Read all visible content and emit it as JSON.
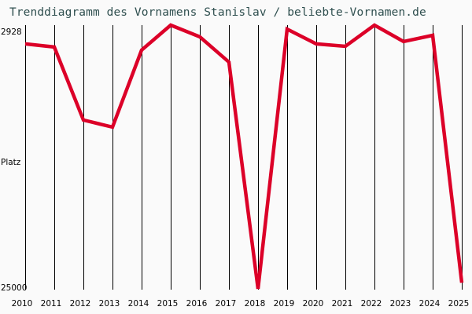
{
  "title": "Trenddiagramm des Vornamens Stanislav / beliebte-Vornamen.de",
  "colors": {
    "background": "#fafafa",
    "title": "#2f4f4f",
    "gridline": "#000000",
    "line": "#dc0028"
  },
  "y_axis": {
    "top_label": "2928",
    "mid_label": "Platz",
    "bottom_label": "25000"
  },
  "chart_data": {
    "type": "line",
    "title": "Trenddiagramm des Vornamens Stanislav / beliebte-Vornamen.de",
    "xlabel": "",
    "ylabel": "Platz",
    "ylim": [
      25000,
      2928
    ],
    "y_inverted": true,
    "grid": {
      "vertical": true,
      "horizontal": false
    },
    "legend": "none",
    "categories": [
      "2010",
      "2011",
      "2012",
      "2013",
      "2014",
      "2015",
      "2016",
      "2017",
      "2018",
      "2019",
      "2020",
      "2021",
      "2022",
      "2023",
      "2024",
      "2025"
    ],
    "series": [
      {
        "name": "Stanislav",
        "values": [
          4500,
          4760,
          10870,
          11460,
          5020,
          2928,
          3910,
          6020,
          25000,
          3260,
          4500,
          4700,
          2928,
          4300,
          3780,
          24480
        ]
      }
    ]
  }
}
